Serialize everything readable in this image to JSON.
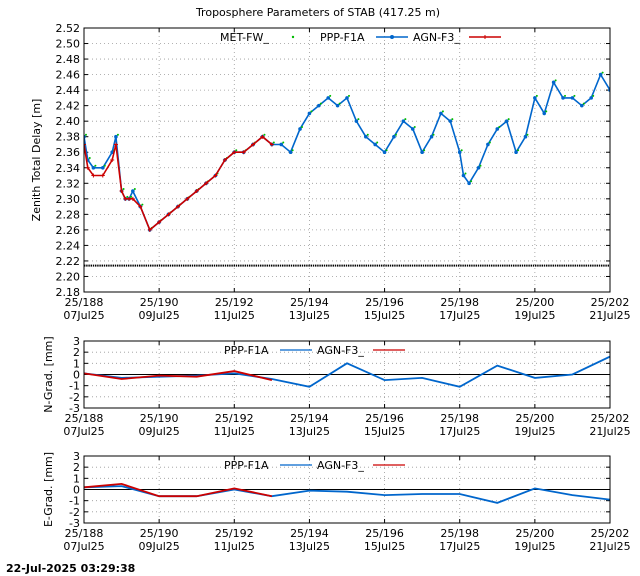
{
  "title": "Troposphere Parameters of STAB (417.25 m)",
  "footer_timestamp": "22-Jul-2025 03:29:38",
  "colors": {
    "met": "#00bb00",
    "ppp": "#0066cc",
    "agn": "#cc0000",
    "zero_line": "#000000",
    "grid": "#999999"
  },
  "x_ticks": [
    {
      "doy": "25/188",
      "date": "07Jul25"
    },
    {
      "doy": "25/190",
      "date": "09Jul25"
    },
    {
      "doy": "25/192",
      "date": "11Jul25"
    },
    {
      "doy": "25/194",
      "date": "13Jul25"
    },
    {
      "doy": "25/196",
      "date": "15Jul25"
    },
    {
      "doy": "25/198",
      "date": "17Jul25"
    },
    {
      "doy": "25/200",
      "date": "19Jul25"
    },
    {
      "doy": "25/202",
      "date": "21Jul25"
    }
  ],
  "chart_data": [
    {
      "type": "line",
      "ylabel": "Zenith Total Delay [m]",
      "ylim": [
        2.18,
        2.52
      ],
      "yticks": [
        "2.18",
        "2.20",
        "2.22",
        "2.24",
        "2.26",
        "2.28",
        "2.30",
        "2.32",
        "2.34",
        "2.36",
        "2.38",
        "2.40",
        "2.42",
        "2.44",
        "2.46",
        "2.48",
        "2.50",
        "2.52"
      ],
      "xlim": [
        188,
        202
      ],
      "grid": true,
      "legend": "top",
      "series": [
        {
          "name": "MET-FW_",
          "style": "dots",
          "x": [
            188.0,
            202.0
          ],
          "y": [
            2.214,
            2.214
          ]
        },
        {
          "name": "PPP-F1A",
          "style": "line-dots",
          "x": [
            188.0,
            188.1,
            188.25,
            188.5,
            188.75,
            188.85,
            189.0,
            189.1,
            189.2,
            189.3,
            189.5,
            189.75,
            190.0,
            190.25,
            190.5,
            190.75,
            191.0,
            191.25,
            191.5,
            191.75,
            192.0,
            192.25,
            192.5,
            192.75,
            193.0,
            193.25,
            193.5,
            193.75,
            194.0,
            194.25,
            194.5,
            194.75,
            195.0,
            195.25,
            195.5,
            195.75,
            196.0,
            196.25,
            196.5,
            196.75,
            197.0,
            197.25,
            197.5,
            197.75,
            198.0,
            198.1,
            198.25,
            198.5,
            198.75,
            199.0,
            199.25,
            199.5,
            199.75,
            200.0,
            200.25,
            200.5,
            200.75,
            201.0,
            201.25,
            201.5,
            201.75,
            202.0
          ],
          "y": [
            2.38,
            2.35,
            2.34,
            2.34,
            2.36,
            2.38,
            2.31,
            2.3,
            2.3,
            2.31,
            2.29,
            2.26,
            2.27,
            2.28,
            2.29,
            2.3,
            2.31,
            2.32,
            2.33,
            2.35,
            2.36,
            2.36,
            2.37,
            2.38,
            2.37,
            2.37,
            2.36,
            2.39,
            2.41,
            2.42,
            2.43,
            2.42,
            2.43,
            2.4,
            2.38,
            2.37,
            2.36,
            2.38,
            2.4,
            2.39,
            2.36,
            2.38,
            2.41,
            2.4,
            2.36,
            2.33,
            2.32,
            2.34,
            2.37,
            2.39,
            2.4,
            2.36,
            2.38,
            2.43,
            2.41,
            2.45,
            2.43,
            2.43,
            2.42,
            2.43,
            2.46,
            2.44
          ]
        },
        {
          "name": "AGN-F3_",
          "style": "line-plus",
          "x": [
            188.0,
            188.1,
            188.25,
            188.5,
            188.75,
            188.85,
            189.0,
            189.1,
            189.2,
            189.3,
            189.5,
            189.75,
            190.0,
            190.25,
            190.5,
            190.75,
            191.0,
            191.25,
            191.5,
            191.75,
            192.0,
            192.25,
            192.5,
            192.75,
            193.0
          ],
          "y": [
            2.37,
            2.34,
            2.33,
            2.33,
            2.35,
            2.37,
            2.31,
            2.3,
            2.3,
            2.3,
            2.29,
            2.26,
            2.27,
            2.28,
            2.29,
            2.3,
            2.31,
            2.32,
            2.33,
            2.35,
            2.36,
            2.36,
            2.37,
            2.38,
            2.37
          ]
        }
      ]
    },
    {
      "type": "line",
      "ylabel": "N-Grad. [mm]",
      "ylim": [
        -3,
        3
      ],
      "yticks": [
        "-3",
        "-2",
        "-1",
        "0",
        "1",
        "2",
        "3"
      ],
      "xlim": [
        188,
        202
      ],
      "grid": true,
      "legend": "top",
      "series": [
        {
          "name": "PPP-F1A",
          "x": [
            188,
            189,
            190,
            191,
            192,
            193,
            194,
            195,
            196,
            197,
            198,
            199,
            200,
            201,
            202
          ],
          "y": [
            0.1,
            -0.3,
            -0.2,
            -0.1,
            0.1,
            -0.4,
            -1.1,
            1.0,
            -0.5,
            -0.3,
            -1.1,
            0.8,
            -0.3,
            0.0,
            1.6
          ]
        },
        {
          "name": "AGN-F3_",
          "x": [
            188,
            189,
            190,
            191,
            192,
            193
          ],
          "y": [
            0.1,
            -0.4,
            -0.1,
            -0.2,
            0.3,
            -0.5
          ]
        }
      ]
    },
    {
      "type": "line",
      "ylabel": "E-Grad. [mm]",
      "ylim": [
        -3,
        3
      ],
      "yticks": [
        "-3",
        "-2",
        "-1",
        "0",
        "1",
        "2",
        "3"
      ],
      "xlim": [
        188,
        202
      ],
      "grid": true,
      "legend": "top",
      "series": [
        {
          "name": "PPP-F1A",
          "x": [
            188,
            189,
            190,
            191,
            192,
            193,
            194,
            195,
            196,
            197,
            198,
            199,
            200,
            201,
            202
          ],
          "y": [
            0.2,
            0.3,
            -0.6,
            -0.6,
            0.0,
            -0.6,
            -0.1,
            -0.2,
            -0.5,
            -0.4,
            -0.4,
            -1.2,
            0.1,
            -0.5,
            -0.9
          ]
        },
        {
          "name": "AGN-F3_",
          "x": [
            188,
            189,
            190,
            191,
            192,
            193
          ],
          "y": [
            0.2,
            0.5,
            -0.6,
            -0.6,
            0.1,
            -0.6
          ]
        }
      ]
    }
  ]
}
